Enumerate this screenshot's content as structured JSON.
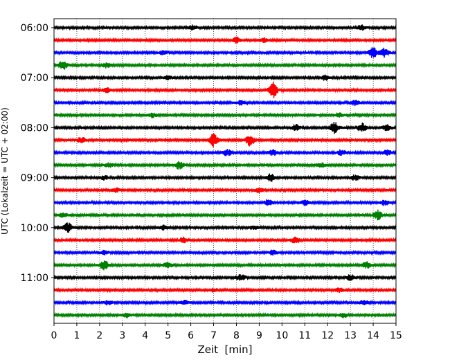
{
  "chart_data": {
    "type": "line",
    "title": "",
    "xlabel": "Zeit  [min]",
    "ylabel": "UTC (Lokalzeit = UTC + 02:00)",
    "xlim": [
      0,
      15
    ],
    "x_ticks": [
      "0",
      "1",
      "2",
      "3",
      "4",
      "5",
      "6",
      "7",
      "8",
      "9",
      "10",
      "11",
      "12",
      "13",
      "14",
      "15"
    ],
    "y_tick_labels": [
      "06:00",
      "07:00",
      "08:00",
      "09:00",
      "10:00",
      "11:00"
    ],
    "trace_interval_min": 15,
    "first_trace": "06:00",
    "trace_count": 24,
    "grid": "vertical-dotted",
    "colors": [
      "#000000",
      "#ff0000",
      "#0000ff",
      "#008000"
    ],
    "series": [
      {
        "start": "06:00",
        "color": "#000000",
        "events": [
          [
            6.1,
            1.0
          ],
          [
            13.5,
            1.1
          ]
        ]
      },
      {
        "start": "06:15",
        "color": "#ff0000",
        "events": [
          [
            8.0,
            1.2
          ],
          [
            9.2,
            1.0
          ]
        ]
      },
      {
        "start": "06:30",
        "color": "#0000ff",
        "events": [
          [
            4.8,
            0.9
          ],
          [
            14.0,
            2.2
          ],
          [
            14.5,
            1.8
          ]
        ]
      },
      {
        "start": "06:45",
        "color": "#008000",
        "events": [
          [
            0.4,
            1.8
          ],
          [
            2.3,
            1.0
          ]
        ]
      },
      {
        "start": "07:00",
        "color": "#000000",
        "events": [
          [
            5.0,
            0.9
          ],
          [
            11.9,
            1.0
          ]
        ]
      },
      {
        "start": "07:15",
        "color": "#ff0000",
        "events": [
          [
            2.3,
            1.0
          ],
          [
            9.6,
            3.5
          ]
        ]
      },
      {
        "start": "07:30",
        "color": "#0000ff",
        "events": [
          [
            8.2,
            1.0
          ],
          [
            13.2,
            1.1
          ]
        ]
      },
      {
        "start": "07:45",
        "color": "#008000",
        "events": [
          [
            4.3,
            1.0
          ],
          [
            12.5,
            0.9
          ]
        ]
      },
      {
        "start": "08:00",
        "color": "#000000",
        "events": [
          [
            10.6,
            1.3
          ],
          [
            12.3,
            2.3
          ],
          [
            13.5,
            2.0
          ],
          [
            14.6,
            1.3
          ]
        ]
      },
      {
        "start": "08:15",
        "color": "#ff0000",
        "events": [
          [
            7.0,
            2.8
          ],
          [
            8.6,
            2.5
          ],
          [
            1.2,
            1.2
          ]
        ]
      },
      {
        "start": "08:30",
        "color": "#0000ff",
        "events": [
          [
            7.6,
            1.4
          ],
          [
            9.6,
            1.4
          ],
          [
            12.6,
            1.3
          ],
          [
            14.6,
            1.2
          ]
        ]
      },
      {
        "start": "08:45",
        "color": "#008000",
        "events": [
          [
            5.5,
            1.8
          ],
          [
            2.4,
            1.0
          ],
          [
            11.7,
            1.1
          ]
        ]
      },
      {
        "start": "09:00",
        "color": "#000000",
        "events": [
          [
            9.5,
            1.6
          ],
          [
            13.2,
            1.3
          ],
          [
            2.2,
            1.0
          ]
        ]
      },
      {
        "start": "09:15",
        "color": "#ff0000",
        "events": [
          [
            9.0,
            1.1
          ],
          [
            2.7,
            0.9
          ]
        ]
      },
      {
        "start": "09:30",
        "color": "#0000ff",
        "events": [
          [
            9.4,
            1.4
          ],
          [
            11.0,
            1.1
          ],
          [
            14.5,
            1.1
          ]
        ]
      },
      {
        "start": "09:45",
        "color": "#008000",
        "events": [
          [
            14.2,
            2.0
          ],
          [
            0.4,
            1.1
          ]
        ]
      },
      {
        "start": "10:00",
        "color": "#000000",
        "events": [
          [
            0.6,
            2.2
          ],
          [
            4.8,
            1.0
          ],
          [
            8.8,
            0.9
          ]
        ]
      },
      {
        "start": "10:15",
        "color": "#ff0000",
        "events": [
          [
            10.6,
            1.4
          ],
          [
            5.7,
            1.1
          ]
        ]
      },
      {
        "start": "10:30",
        "color": "#0000ff",
        "events": [
          [
            9.6,
            1.0
          ],
          [
            2.2,
            0.9
          ]
        ]
      },
      {
        "start": "10:45",
        "color": "#008000",
        "events": [
          [
            2.2,
            2.0
          ],
          [
            5.0,
            1.3
          ],
          [
            13.7,
            1.3
          ]
        ]
      },
      {
        "start": "11:00",
        "color": "#000000",
        "events": [
          [
            8.2,
            1.4
          ],
          [
            13.0,
            1.2
          ]
        ]
      },
      {
        "start": "11:15",
        "color": "#ff0000",
        "events": [
          [
            7.0,
            0.8
          ],
          [
            12.5,
            0.9
          ]
        ]
      },
      {
        "start": "11:30",
        "color": "#0000ff",
        "events": [
          [
            2.4,
            1.1
          ],
          [
            13.6,
            1.1
          ],
          [
            5.7,
            0.9
          ]
        ]
      },
      {
        "start": "11:45",
        "color": "#008000",
        "events": [
          [
            3.2,
            0.9
          ],
          [
            12.7,
            0.9
          ]
        ]
      }
    ]
  }
}
